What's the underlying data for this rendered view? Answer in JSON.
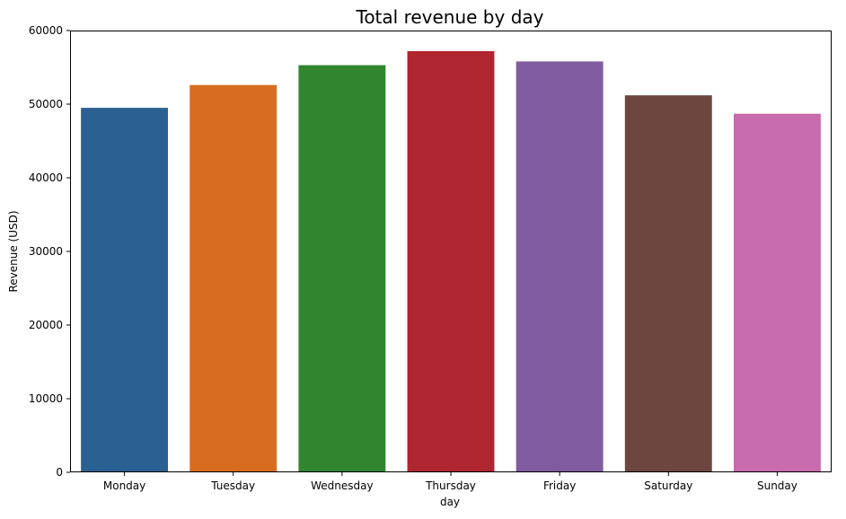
{
  "chart_data": {
    "type": "bar",
    "title": "Total revenue by day",
    "xlabel": "day",
    "ylabel": "Revenue (USD)",
    "categories": [
      "Monday",
      "Tuesday",
      "Wednesday",
      "Thursday",
      "Friday",
      "Saturday",
      "Sunday"
    ],
    "values": [
      49500,
      52600,
      55300,
      57200,
      55800,
      51200,
      48700
    ],
    "colors": [
      "#2a6192",
      "#d86d21",
      "#32852f",
      "#af2530",
      "#815b9f",
      "#6d463f",
      "#c86cad"
    ],
    "ylim": [
      0,
      60000
    ],
    "yticks": [
      0,
      10000,
      20000,
      30000,
      40000,
      50000,
      60000
    ],
    "grid": false,
    "legend": "none"
  }
}
